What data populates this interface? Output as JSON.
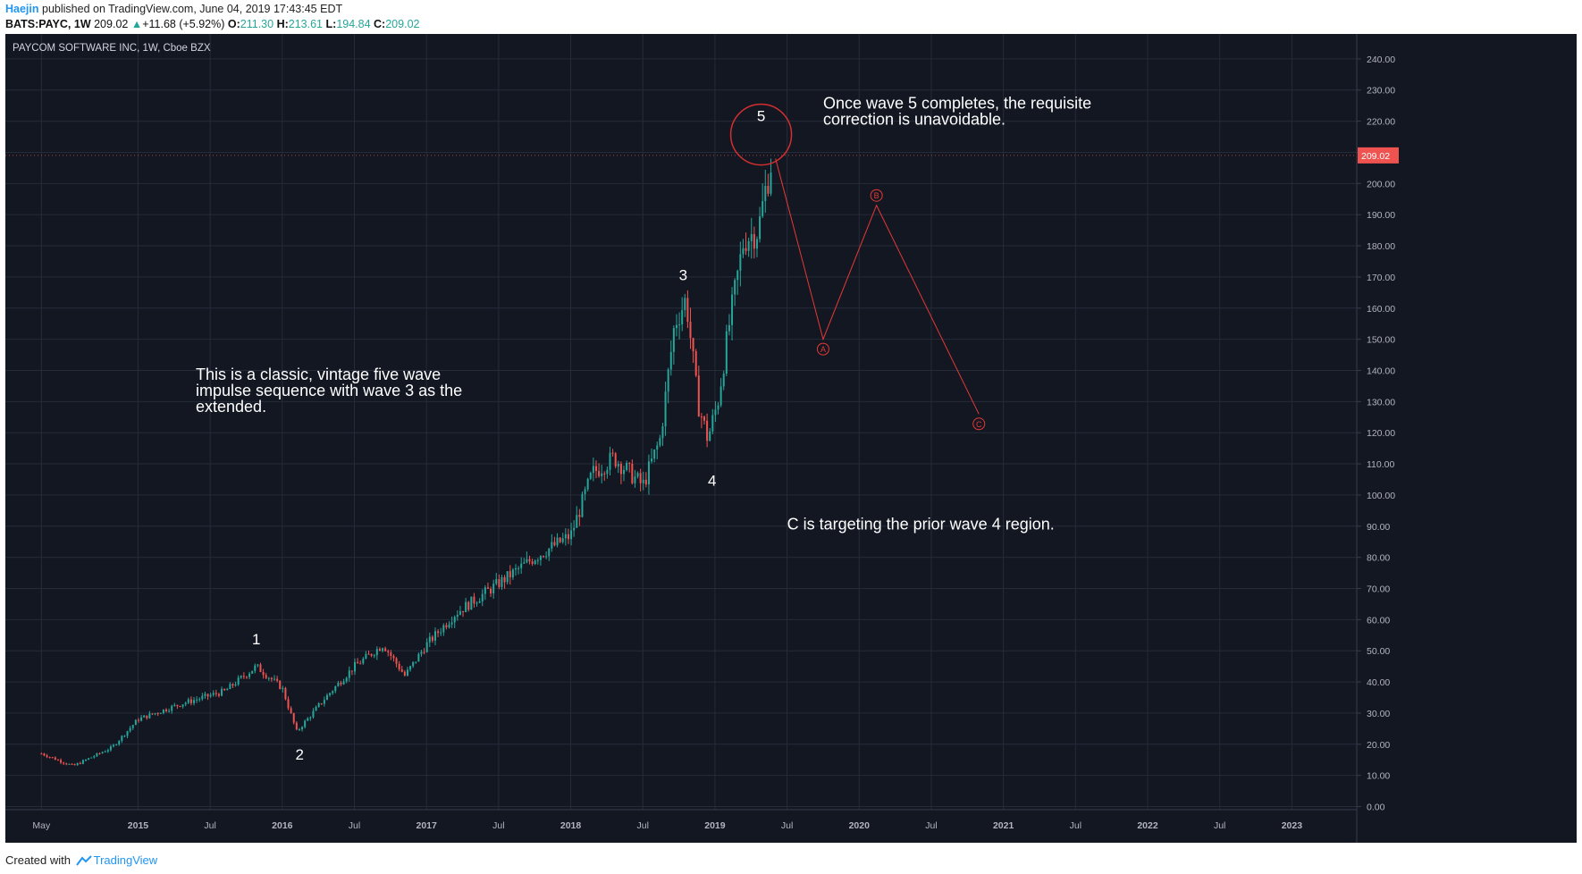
{
  "header": {
    "author": "Haejin",
    "published_text": "published on TradingView.com, June 04, 2019 17:43:45 EDT",
    "symbol": "BATS:PAYC, 1W",
    "last": "209.02",
    "change": "+11.68 (+5.92%)",
    "open_label": "O:",
    "open": "211.30",
    "high_label": "H:",
    "high": "213.61",
    "low_label": "L:",
    "low": "194.84",
    "close_label": "C:",
    "close": "209.02"
  },
  "chart_data": {
    "type": "candlestick",
    "title": "PAYCOM SOFTWARE INC, 1W, Cboe BZX",
    "x_ticks": [
      "May",
      "2015",
      "Jul",
      "2016",
      "Jul",
      "2017",
      "Jul",
      "2018",
      "Jul",
      "2019",
      "Jul",
      "2020",
      "Jul",
      "2021",
      "Jul",
      "2022",
      "Jul",
      "2023"
    ],
    "y_ticks": [
      "0.00",
      "10.00",
      "20.00",
      "30.00",
      "40.00",
      "50.00",
      "60.00",
      "70.00",
      "80.00",
      "90.00",
      "100.00",
      "110.00",
      "120.00",
      "130.00",
      "140.00",
      "150.00",
      "160.00",
      "170.00",
      "180.00",
      "190.00",
      "200.00",
      "210.00",
      "220.00",
      "230.00",
      "240.00"
    ],
    "ylim": [
      -1,
      248
    ],
    "last_price_label": "209.02",
    "last_price": 209.02,
    "price_path": [
      {
        "x": 2014.33,
        "y": 17
      },
      {
        "x": 2014.55,
        "y": 13
      },
      {
        "x": 2014.82,
        "y": 19
      },
      {
        "x": 2015.0,
        "y": 28
      },
      {
        "x": 2015.3,
        "y": 33
      },
      {
        "x": 2015.6,
        "y": 37
      },
      {
        "x": 2015.82,
        "y": 45
      },
      {
        "x": 2016.0,
        "y": 38
      },
      {
        "x": 2016.1,
        "y": 24
      },
      {
        "x": 2016.3,
        "y": 35
      },
      {
        "x": 2016.5,
        "y": 45
      },
      {
        "x": 2016.7,
        "y": 52
      },
      {
        "x": 2016.85,
        "y": 42
      },
      {
        "x": 2017.0,
        "y": 52
      },
      {
        "x": 2017.2,
        "y": 62
      },
      {
        "x": 2017.45,
        "y": 70
      },
      {
        "x": 2017.75,
        "y": 80
      },
      {
        "x": 2018.0,
        "y": 87
      },
      {
        "x": 2018.15,
        "y": 107
      },
      {
        "x": 2018.3,
        "y": 112
      },
      {
        "x": 2018.5,
        "y": 103
      },
      {
        "x": 2018.62,
        "y": 118
      },
      {
        "x": 2018.72,
        "y": 155
      },
      {
        "x": 2018.8,
        "y": 163
      },
      {
        "x": 2018.88,
        "y": 130
      },
      {
        "x": 2018.95,
        "y": 118
      },
      {
        "x": 2019.02,
        "y": 130
      },
      {
        "x": 2019.1,
        "y": 155
      },
      {
        "x": 2019.2,
        "y": 182
      },
      {
        "x": 2019.3,
        "y": 185
      },
      {
        "x": 2019.35,
        "y": 198
      },
      {
        "x": 2019.4,
        "y": 209
      }
    ],
    "wave_labels": [
      {
        "label": "1",
        "x": 2015.82,
        "y": 52
      },
      {
        "label": "2",
        "x": 2016.12,
        "y": 15
      },
      {
        "label": "3",
        "x": 2018.78,
        "y": 169
      },
      {
        "label": "4",
        "x": 2018.98,
        "y": 103
      },
      {
        "label": "5",
        "x": 2019.32,
        "y": 220
      }
    ],
    "projection": [
      {
        "x": 2019.42,
        "y": 208,
        "label": ""
      },
      {
        "x": 2019.75,
        "y": 150,
        "label": "A"
      },
      {
        "x": 2020.12,
        "y": 193,
        "label": "B"
      },
      {
        "x": 2020.83,
        "y": 126,
        "label": "C"
      }
    ],
    "annotations": [
      {
        "lines": [
          "This is a classic, vintage five wave",
          "impulse sequence with wave 3 as the",
          "extended."
        ],
        "x": 2015.4,
        "y": 137
      },
      {
        "lines": [
          "Once wave 5 completes, the requisite",
          "correction is unavoidable."
        ],
        "x": 2019.75,
        "y": 224
      },
      {
        "lines": [
          "C is targeting the prior wave 4 region."
        ],
        "x": 2019.5,
        "y": 89
      }
    ]
  },
  "colors": {
    "background": "#131722",
    "grid": "#262b3a",
    "up": "#26a69a",
    "down": "#ef5350",
    "axis_text": "#b2b5be",
    "price_tag": "#ef5350",
    "circle": "#d32f2f",
    "projection": "#e53935",
    "annotation_text": "#ffffff"
  },
  "footer": {
    "created_with": "Created with",
    "brand": "TradingView"
  }
}
